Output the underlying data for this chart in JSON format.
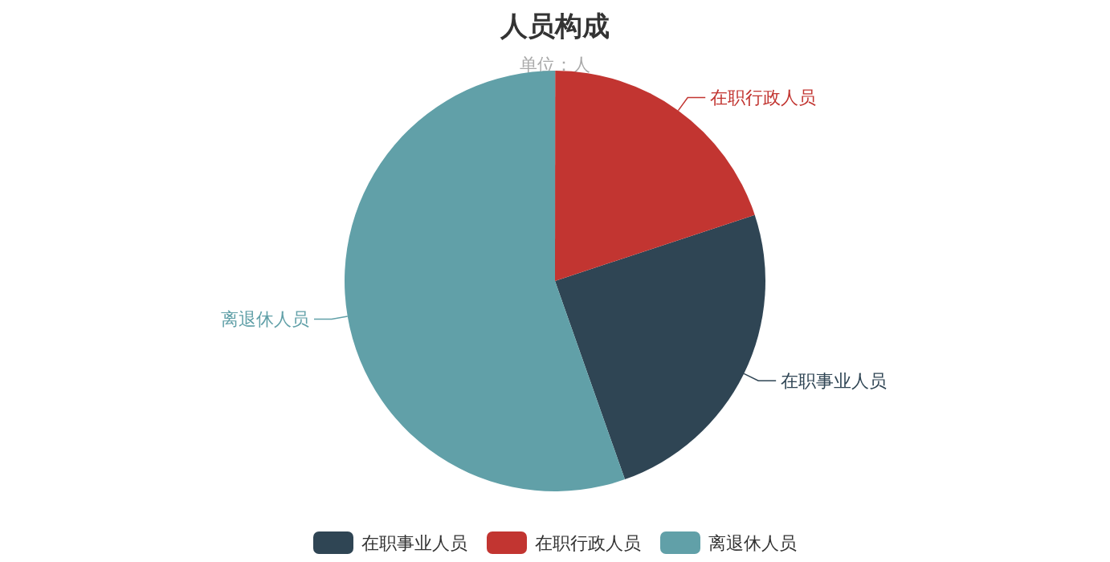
{
  "chart_data": {
    "type": "pie",
    "title": "人员构成",
    "subtitle": "单位：人",
    "categories": [
      "在职事业人员",
      "在职行政人员",
      "离退休人员"
    ],
    "values": [
      24.7,
      19.9,
      55.4
    ],
    "colors": [
      "#2f4554",
      "#c23531",
      "#61a0a8"
    ],
    "legend": "bottom"
  }
}
